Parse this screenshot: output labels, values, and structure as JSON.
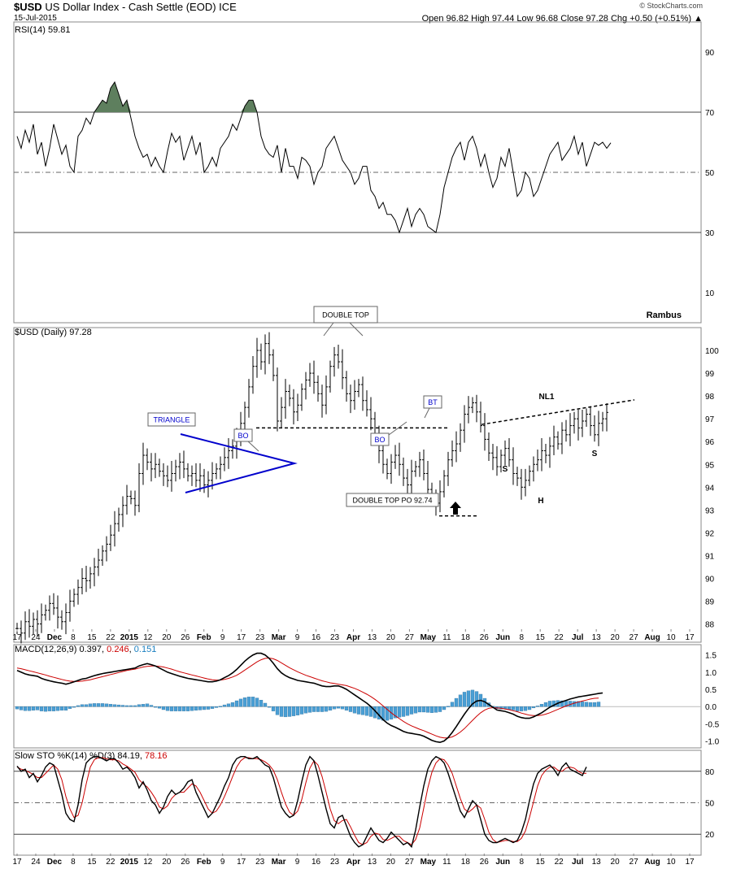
{
  "header": {
    "symbol": "$USD",
    "name": "US Dollar Index - Cash Settle (EOD) ICE",
    "date": "15-Jul-2015",
    "ohlc": "Open 96.82  High 97.44  Low 96.68  Close 97.28  Chg +0.50 (+0.51%) ▲",
    "credit": "© StockCharts.com"
  },
  "author": "Rambus",
  "x_tick_labels": [
    "17",
    "24",
    "Dec",
    "8",
    "15",
    "22",
    "2015",
    "12",
    "20",
    "26",
    "Feb",
    "9",
    "17",
    "23",
    "Mar",
    "9",
    "16",
    "23",
    "Apr",
    "13",
    "20",
    "27",
    "May",
    "11",
    "18",
    "26",
    "Jun",
    "8",
    "15",
    "22",
    "Jul",
    "13",
    "20",
    "27",
    "Aug",
    "10",
    "17"
  ],
  "colors": {
    "price": "#000000",
    "triangle": "#0000cc",
    "macd_signal": "#cc0000",
    "macd_hist": "#4a9fd4",
    "rsi_fill": "#5e7f5e",
    "grid": "#999999"
  },
  "chart_data": [
    {
      "type": "line",
      "title": "RSI(14) 59.81",
      "yticks": [
        90,
        70,
        50,
        30,
        10
      ],
      "ylim": [
        0,
        100
      ],
      "overbought": 70,
      "midline": 50,
      "oversold": 30,
      "fill_above_overbought": true,
      "values": [
        62,
        58,
        64,
        60,
        66,
        56,
        60,
        52,
        58,
        66,
        61,
        56,
        59,
        52,
        50,
        62,
        64,
        68,
        66,
        70,
        72,
        74,
        73,
        78,
        80,
        76,
        72,
        74,
        68,
        62,
        58,
        55,
        56,
        52,
        55,
        52,
        50,
        57,
        63,
        60,
        62,
        54,
        58,
        62,
        56,
        60,
        50,
        52,
        55,
        52,
        58,
        60,
        62,
        66,
        64,
        68,
        72,
        74,
        74,
        70,
        62,
        58,
        56,
        55,
        59,
        50,
        58,
        52,
        52,
        48,
        55,
        54,
        52,
        46,
        50,
        52,
        58,
        60,
        62,
        58,
        54,
        52,
        50,
        46,
        48,
        52,
        52,
        44,
        42,
        38,
        40,
        36,
        36,
        34,
        30,
        34,
        38,
        32,
        36,
        38,
        36,
        32,
        31,
        30,
        36,
        45,
        50,
        55,
        58,
        60,
        54,
        60,
        62,
        58,
        52,
        56,
        50,
        45,
        48,
        55,
        52,
        58,
        50,
        42,
        44,
        50,
        48,
        42,
        44,
        48,
        52,
        56,
        58,
        60,
        54,
        56,
        58,
        62,
        56,
        60,
        52,
        56,
        60,
        59,
        60,
        58,
        59.81
      ]
    },
    {
      "type": "line",
      "title": "$USD (Daily) 97.28",
      "yticks": [
        88,
        89,
        90,
        91,
        92,
        93,
        94,
        95,
        96,
        97,
        98,
        99,
        100
      ],
      "ylim": [
        87.2,
        101.0
      ],
      "values": [
        87.8,
        87.6,
        88.1,
        87.9,
        88.2,
        88.0,
        88.4,
        88.6,
        88.9,
        88.7,
        88.3,
        88.1,
        88.5,
        89.0,
        89.3,
        89.6,
        90.0,
        89.9,
        90.2,
        90.5,
        90.8,
        91.2,
        91.5,
        91.9,
        92.4,
        92.8,
        93.2,
        93.6,
        93.5,
        93.2,
        94.6,
        95.4,
        95.1,
        94.8,
        95.0,
        94.7,
        94.5,
        94.3,
        94.6,
        94.9,
        95.1,
        94.8,
        94.5,
        94.6,
        94.3,
        94.5,
        94.1,
        94.3,
        94.6,
        94.8,
        95.0,
        95.3,
        95.6,
        95.8,
        96.2,
        96.8,
        97.5,
        98.4,
        99.3,
        100.0,
        99.5,
        100.3,
        99.8,
        98.9,
        96.9,
        97.5,
        98.2,
        97.9,
        97.3,
        97.6,
        98.3,
        98.7,
        99.0,
        98.6,
        98.1,
        97.6,
        98.4,
        99.3,
        99.8,
        99.5,
        98.8,
        98.1,
        97.8,
        98.2,
        98.5,
        97.8,
        97.4,
        97.0,
        96.3,
        95.6,
        95.0,
        94.6,
        95.1,
        95.4,
        95.0,
        94.4,
        94.1,
        94.7,
        94.9,
        95.2,
        94.6,
        93.9,
        93.5,
        93.3,
        93.8,
        94.5,
        95.2,
        95.6,
        95.9,
        96.5,
        97.2,
        97.5,
        97.7,
        97.3,
        96.7,
        96.1,
        95.5,
        95.3,
        94.9,
        95.4,
        95.7,
        95.2,
        94.6,
        94.4,
        94.0,
        94.3,
        94.7,
        95.0,
        95.2,
        95.6,
        95.4,
        95.8,
        96.2,
        95.9,
        96.5,
        96.3,
        96.7,
        97.0,
        96.6,
        96.9,
        97.2,
        96.7,
        96.3,
        96.8,
        97.0,
        97.28
      ]
    },
    {
      "type": "line",
      "title": "MACD(12,26,9)",
      "legend": [
        {
          "name": "MACD(12,26,9)",
          "value": "0.397"
        },
        {
          "name": "",
          "value": "0.246"
        },
        {
          "name": "",
          "value": "0.151"
        }
      ],
      "yticks": [
        1.5,
        1.0,
        0.5,
        0.0,
        -0.5,
        -1.0
      ],
      "ylim": [
        -1.2,
        1.8
      ],
      "macd": [
        1.05,
        1.0,
        0.95,
        0.92,
        0.9,
        0.88,
        0.82,
        0.78,
        0.75,
        0.72,
        0.7,
        0.68,
        0.65,
        0.68,
        0.72,
        0.76,
        0.8,
        0.82,
        0.86,
        0.9,
        0.93,
        0.96,
        0.98,
        1.0,
        1.02,
        1.04,
        1.06,
        1.08,
        1.1,
        1.12,
        1.18,
        1.22,
        1.25,
        1.22,
        1.18,
        1.12,
        1.06,
        1.0,
        0.96,
        0.92,
        0.88,
        0.85,
        0.82,
        0.8,
        0.78,
        0.76,
        0.74,
        0.72,
        0.72,
        0.74,
        0.78,
        0.84,
        0.9,
        0.98,
        1.08,
        1.2,
        1.32,
        1.42,
        1.5,
        1.55,
        1.55,
        1.5,
        1.4,
        1.26,
        1.1,
        0.98,
        0.9,
        0.84,
        0.8,
        0.76,
        0.74,
        0.72,
        0.7,
        0.68,
        0.64,
        0.6,
        0.58,
        0.58,
        0.6,
        0.6,
        0.56,
        0.5,
        0.42,
        0.34,
        0.26,
        0.18,
        0.1,
        0.0,
        -0.12,
        -0.25,
        -0.38,
        -0.48,
        -0.55,
        -0.6,
        -0.66,
        -0.72,
        -0.76,
        -0.78,
        -0.8,
        -0.82,
        -0.86,
        -0.92,
        -0.98,
        -1.02,
        -1.04,
        -1.0,
        -0.9,
        -0.75,
        -0.58,
        -0.4,
        -0.22,
        -0.06,
        0.08,
        0.16,
        0.18,
        0.14,
        0.06,
        -0.02,
        -0.1,
        -0.12,
        -0.14,
        -0.18,
        -0.22,
        -0.28,
        -0.32,
        -0.34,
        -0.34,
        -0.3,
        -0.24,
        -0.18,
        -0.1,
        -0.02,
        0.04,
        0.1,
        0.14,
        0.18,
        0.22,
        0.25,
        0.28,
        0.3,
        0.32,
        0.34,
        0.36,
        0.38,
        0.397
      ],
      "signal": [
        1.12,
        1.1,
        1.07,
        1.04,
        1.01,
        0.98,
        0.95,
        0.92,
        0.88,
        0.85,
        0.82,
        0.79,
        0.76,
        0.74,
        0.73,
        0.73,
        0.74,
        0.76,
        0.78,
        0.81,
        0.84,
        0.87,
        0.9,
        0.93,
        0.96,
        0.99,
        1.02,
        1.05,
        1.07,
        1.09,
        1.12,
        1.15,
        1.17,
        1.18,
        1.18,
        1.17,
        1.15,
        1.12,
        1.09,
        1.05,
        1.01,
        0.98,
        0.95,
        0.92,
        0.89,
        0.86,
        0.83,
        0.8,
        0.78,
        0.77,
        0.77,
        0.79,
        0.82,
        0.86,
        0.91,
        0.98,
        1.06,
        1.14,
        1.22,
        1.3,
        1.36,
        1.4,
        1.41,
        1.39,
        1.34,
        1.27,
        1.2,
        1.13,
        1.07,
        1.01,
        0.96,
        0.91,
        0.87,
        0.83,
        0.79,
        0.75,
        0.72,
        0.69,
        0.67,
        0.65,
        0.63,
        0.61,
        0.57,
        0.53,
        0.48,
        0.42,
        0.36,
        0.29,
        0.21,
        0.12,
        0.02,
        -0.08,
        -0.18,
        -0.27,
        -0.35,
        -0.43,
        -0.5,
        -0.56,
        -0.61,
        -0.66,
        -0.7,
        -0.75,
        -0.8,
        -0.85,
        -0.89,
        -0.91,
        -0.91,
        -0.88,
        -0.82,
        -0.74,
        -0.64,
        -0.52,
        -0.4,
        -0.28,
        -0.18,
        -0.1,
        -0.05,
        -0.03,
        -0.04,
        -0.05,
        -0.07,
        -0.09,
        -0.12,
        -0.15,
        -0.19,
        -0.22,
        -0.25,
        -0.26,
        -0.26,
        -0.25,
        -0.22,
        -0.18,
        -0.13,
        -0.08,
        -0.03,
        0.02,
        0.06,
        0.1,
        0.13,
        0.16,
        0.19,
        0.22,
        0.24,
        0.246
      ]
    },
    {
      "type": "line",
      "title": "Slow STO %K(14) %D(3)",
      "legend": [
        {
          "name": "Slow STO %K(14) %D(3)",
          "value": "84.19"
        },
        {
          "name": "",
          "value": "78.16"
        }
      ],
      "yticks": [
        80,
        50,
        20
      ],
      "ylim": [
        0,
        100
      ],
      "k": [
        85,
        80,
        82,
        74,
        78,
        70,
        76,
        84,
        88,
        86,
        72,
        58,
        40,
        34,
        32,
        48,
        72,
        88,
        92,
        94,
        94,
        92,
        90,
        92,
        92,
        88,
        82,
        84,
        80,
        74,
        64,
        70,
        62,
        52,
        48,
        40,
        46,
        56,
        62,
        58,
        60,
        64,
        70,
        72,
        60,
        52,
        44,
        36,
        40,
        48,
        56,
        66,
        74,
        86,
        92,
        94,
        94,
        92,
        92,
        94,
        90,
        86,
        84,
        74,
        60,
        46,
        40,
        36,
        38,
        52,
        70,
        86,
        94,
        90,
        76,
        60,
        44,
        30,
        26,
        36,
        38,
        28,
        18,
        12,
        8,
        10,
        18,
        26,
        20,
        14,
        12,
        16,
        22,
        18,
        14,
        10,
        12,
        8,
        24,
        46,
        66,
        82,
        90,
        94,
        92,
        88,
        78,
        66,
        54,
        42,
        36,
        44,
        52,
        48,
        34,
        20,
        14,
        12,
        12,
        14,
        16,
        14,
        12,
        14,
        22,
        34,
        52,
        68,
        78,
        82,
        84,
        86,
        82,
        76,
        84,
        88,
        82,
        80,
        78,
        76,
        84.19
      ],
      "d": [
        84,
        82,
        81,
        79,
        77,
        74,
        74,
        78,
        82,
        86,
        82,
        72,
        56,
        44,
        36,
        38,
        50,
        68,
        84,
        91,
        93,
        93,
        92,
        91,
        91,
        90,
        87,
        85,
        82,
        79,
        72,
        68,
        65,
        60,
        54,
        46,
        44,
        47,
        54,
        58,
        60,
        60,
        64,
        68,
        66,
        60,
        52,
        44,
        40,
        42,
        48,
        56,
        65,
        75,
        84,
        90,
        93,
        93,
        92,
        92,
        91,
        89,
        86,
        81,
        72,
        60,
        49,
        41,
        38,
        42,
        53,
        69,
        83,
        90,
        86,
        75,
        60,
        44,
        33,
        30,
        33,
        34,
        27,
        19,
        12,
        10,
        12,
        18,
        21,
        20,
        15,
        14,
        16,
        18,
        18,
        14,
        12,
        10,
        15,
        26,
        45,
        64,
        79,
        88,
        92,
        91,
        86,
        78,
        66,
        54,
        44,
        41,
        44,
        48,
        45,
        34,
        22,
        15,
        12,
        13,
        14,
        14,
        13,
        13,
        16,
        23,
        36,
        51,
        66,
        76,
        81,
        84,
        84,
        81,
        80,
        83,
        84,
        83,
        80,
        78,
        78.16
      ]
    }
  ],
  "annotations": {
    "double_top": "DOUBLE TOP",
    "triangle": "TRIANGLE",
    "bo1": "BO",
    "bo2": "BO",
    "bt": "BT",
    "double_top_po": "DOUBLE TOP PO 92.74",
    "nl1": "NL1",
    "s1": "S",
    "h": "H",
    "s2": "S"
  }
}
